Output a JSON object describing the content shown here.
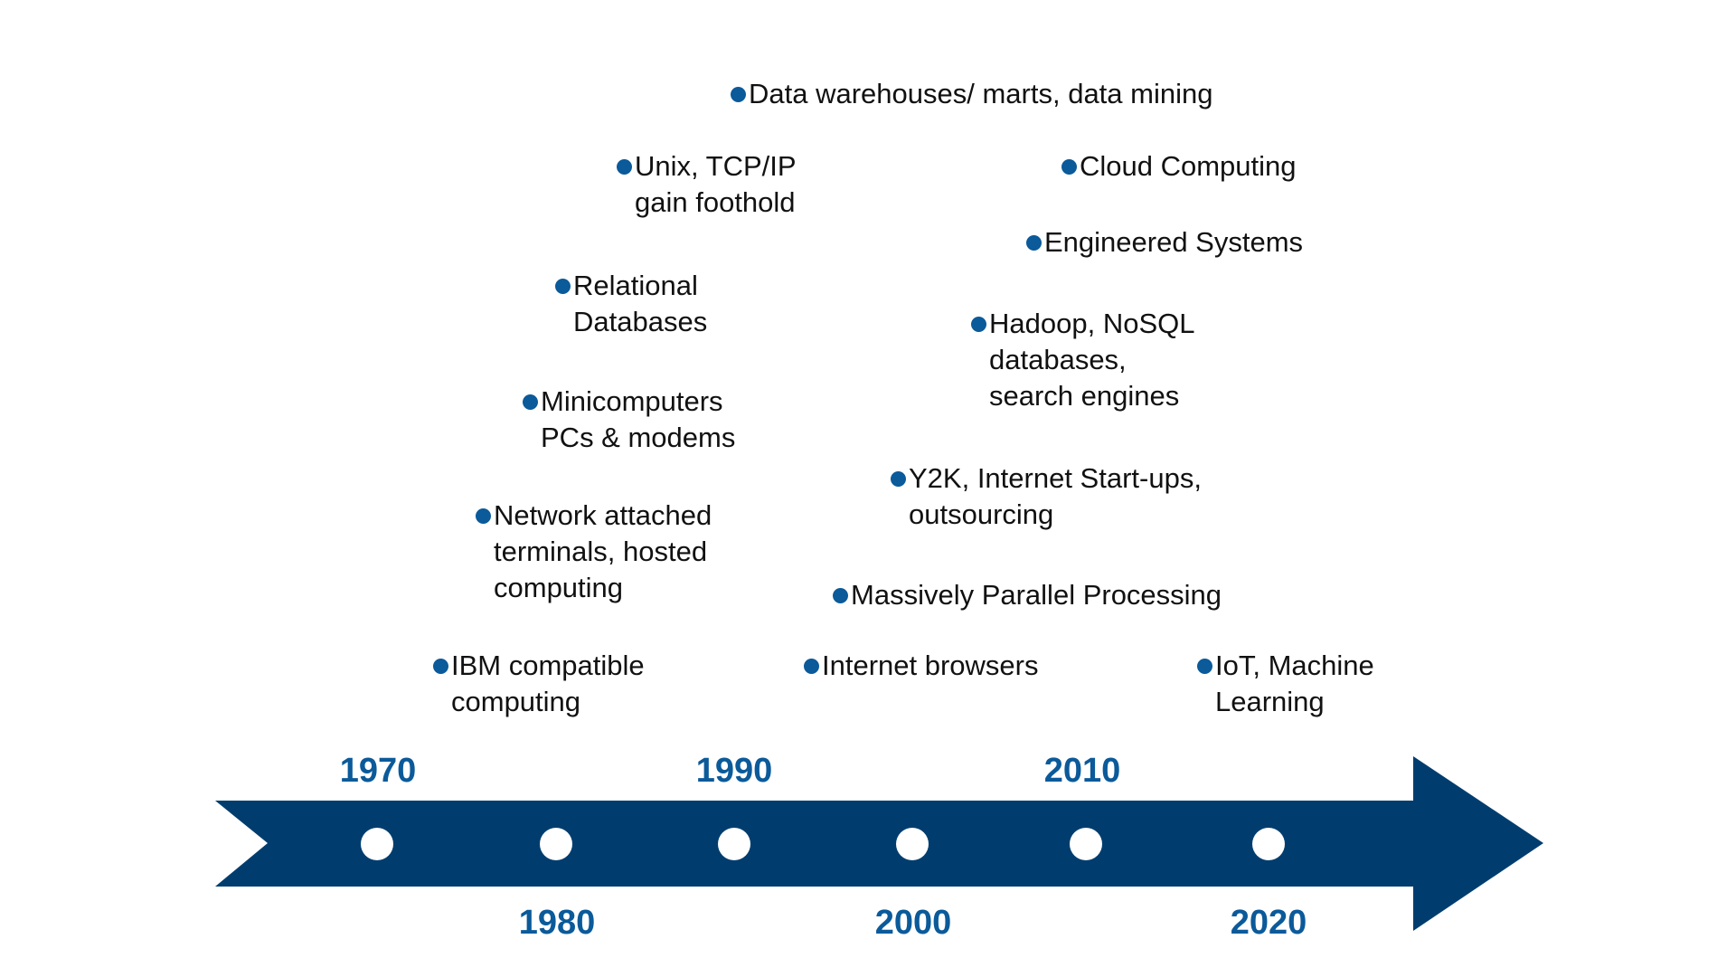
{
  "colors": {
    "arrow": "#003d6e",
    "marker": "#ffffff",
    "bullet": "#0b5a9a",
    "year_text": "#0b5a9a",
    "event_text": "#111111"
  },
  "timeline": {
    "years_above": [
      "1970",
      "1990",
      "2010"
    ],
    "years_below": [
      "1980",
      "2000",
      "2020"
    ]
  },
  "events": [
    {
      "id": "data-warehouses",
      "lines": [
        "Data warehouses/ marts, data mining"
      ]
    },
    {
      "id": "unix-tcpip",
      "lines": [
        "Unix, TCP/IP",
        "gain foothold"
      ]
    },
    {
      "id": "cloud-computing",
      "lines": [
        "Cloud Computing"
      ]
    },
    {
      "id": "engineered-systems",
      "lines": [
        "Engineered Systems"
      ]
    },
    {
      "id": "relational-databases",
      "lines": [
        "Relational",
        "Databases"
      ]
    },
    {
      "id": "hadoop-nosql",
      "lines": [
        "Hadoop, NoSQL",
        "databases,",
        "search engines"
      ]
    },
    {
      "id": "minicomputers",
      "lines": [
        "Minicomputers",
        "PCs & modems"
      ]
    },
    {
      "id": "y2k",
      "lines": [
        "Y2K, Internet Start-ups,",
        "outsourcing"
      ]
    },
    {
      "id": "network-terminals",
      "lines": [
        "Network attached",
        "terminals, hosted",
        "computing"
      ]
    },
    {
      "id": "massively-parallel",
      "lines": [
        "Massively Parallel Processing"
      ]
    },
    {
      "id": "ibm-compatible",
      "lines": [
        "IBM compatible",
        "computing"
      ]
    },
    {
      "id": "internet-browsers",
      "lines": [
        "Internet browsers"
      ]
    },
    {
      "id": "iot-ml",
      "lines": [
        "IoT, Machine",
        "Learning"
      ]
    }
  ]
}
